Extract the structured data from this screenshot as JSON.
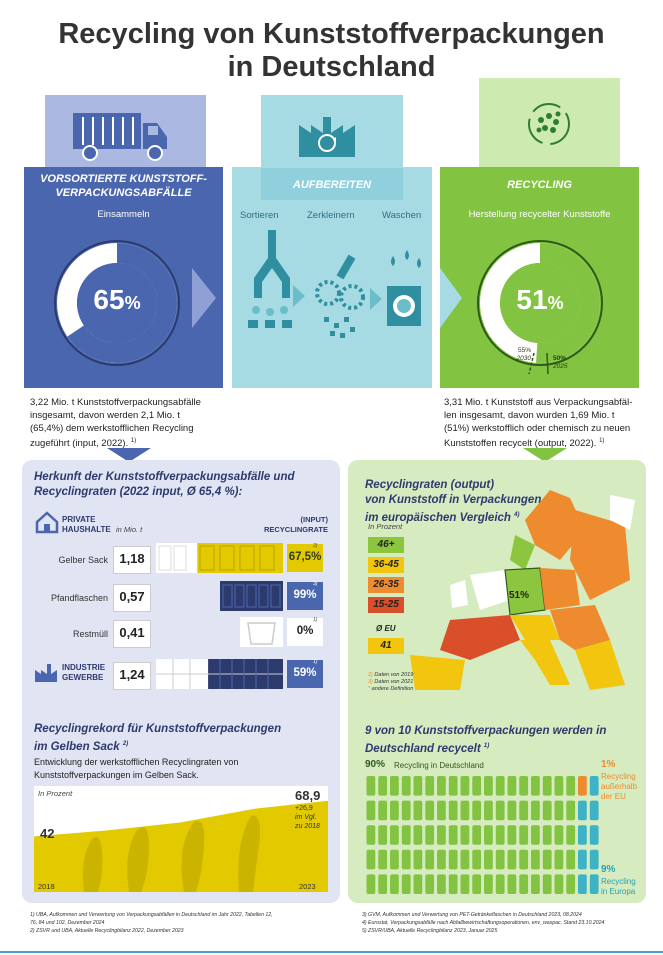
{
  "title_line1": "Recycling von Kunststoffverpackungen",
  "title_line2": "in Deutschland",
  "col1": {
    "title_line1": "VORSORTIERTE KUNSTSTOFF-",
    "title_line2": "VERPACKUNGSABFÄLLE",
    "sub": "Einsammeln",
    "pct_value": "65",
    "pct_sign": "%",
    "fill_fraction": 0.654,
    "desc_line1": "3,22 Mio. t Kunststoffverpackungsabfälle",
    "desc_line2": "insgesamt, davon werden 2,1 Mio. t",
    "desc_line3": "(65,4%) dem werkstofflichen Recycling",
    "desc_line4": "zugeführt (input, 2022).",
    "desc_fn": "1)"
  },
  "col2": {
    "title": "AUFBEREITEN",
    "step1": "Sortieren",
    "step2": "Zerkleinern",
    "step3": "Waschen"
  },
  "col3": {
    "title": "RECYCLING",
    "sub": "Herstellung recycelter Kunststoffe",
    "pct_value": "51",
    "pct_sign": "%",
    "fill_fraction": 0.51,
    "target_pct": "55%",
    "target_year": "2030",
    "target2_pct": "50%",
    "target2_year": "2025",
    "desc_line1": "3,31 Mio. t Kunststoff aus Verpackungsabfäl-",
    "desc_line2": "len insgesamt, davon wurden 1,69 Mio. t",
    "desc_line3": "(51%) werkstofflich oder chemisch zu neuen",
    "desc_line4": "Kunststoffen recycelt (output, 2022).",
    "desc_fn": "1)"
  },
  "herkunft": {
    "title_line1": "Herkunft der Kunststoffverpackungsabfälle und",
    "title_line2": "Recyclingraten (2022 input, Ø 65,4 %):",
    "private_line1": "PRIVATE",
    "private_line2": "HAUSHALTE",
    "unit": "in Mio. t",
    "rate_head1": "(INPUT)",
    "rate_head2": "RECYCLINGRATE",
    "industry_line1": "INDUSTRIE",
    "industry_line2": "GEWERBE"
  },
  "chart_data": [
    {
      "type": "bar",
      "title": "Herkunft der Kunststoffverpackungsabfälle und Recyclingraten (2022 input, Ø 65,4 %):",
      "categories": [
        "Gelber Sack",
        "Pfandflaschen",
        "Restmüll",
        "INDUSTRIE GEWERBE"
      ],
      "amounts": [
        "1,18",
        "0,57",
        "0,41",
        "1,24"
      ],
      "rates": [
        "67,5%",
        "99%",
        "0%",
        "59%"
      ],
      "rate_values": [
        67.5,
        99,
        0,
        59
      ],
      "footnotes": [
        "2)",
        "3)",
        "1)",
        "1)"
      ]
    },
    {
      "type": "area",
      "title": "Recyclingrekord für Kunststoffverpackungen im Gelben Sack",
      "title_fn": "2)",
      "subtitle_line1": "Entwicklung der werkstofflichen Recyclingraten von",
      "subtitle_line2": "Kunststoffverpackungen im Gelben Sack.",
      "ylabel": "In Prozent",
      "x": [
        2018,
        2023
      ],
      "x_labels": [
        "2018",
        "2023"
      ],
      "values": [
        42,
        68.9
      ],
      "value_labels": [
        "42",
        "68,9"
      ],
      "ylim": [
        0,
        80
      ],
      "delta_line1": "+26,9",
      "delta_line2": "im Vgl.",
      "delta_line3": "zu 2018"
    },
    {
      "type": "table",
      "title": "Recyclingraten (output) von Kunststoff in Verpackungen im europäischen Vergleich",
      "title_fn": "4)",
      "ylabel": "In Prozent",
      "legend": [
        "46+",
        "36-45",
        "26-35",
        "15-25"
      ],
      "legend_colors": [
        "#8cc63f",
        "#f2c50f",
        "#ed8b2e",
        "#d94f2a"
      ],
      "eu_label": "Ø EU",
      "eu_value": "41",
      "germany_value": "51%",
      "notes": [
        "Daten von 2019",
        "Daten von 2021",
        "andere Definition"
      ]
    },
    {
      "type": "bar",
      "title": "9 von 10 Kunststoffverpackungen werden in Deutschland recycelt",
      "title_fn": "1)",
      "categories": [
        "Recycling in Deutschland",
        "Recycling außerhalb der EU",
        "Recycling in Europa"
      ],
      "values": [
        90,
        1,
        9
      ],
      "value_labels": [
        "90%",
        "1%",
        "9%"
      ]
    }
  ],
  "europe": {
    "title_line1": "Recyclingraten (output)",
    "title_line2": "von Kunststoff in Verpackungen",
    "title_line3": "im europäischen Vergleich",
    "note_marks": [
      "2)",
      "3)",
      "*"
    ]
  },
  "record": {
    "title_line1": "Recyclingrekord für Kunststoffverpackungen",
    "title_line2": "im Gelben Sack"
  },
  "nine": {
    "title_line1": "9 von 10 Kunststoffverpackungen werden in",
    "title_line2": "Deutschland recycelt",
    "de_label": "Recycling in Deutschland",
    "outside_line1": "Recycling",
    "outside_line2": "außerhalb",
    "outside_line3": "der EU",
    "europe_line1": "Recycling",
    "europe_line2": "in Europa"
  },
  "footnotes_left": [
    "1) UBA, Aufkommen und Verwertung von Verpackungsabfällen in Deutschland im Jahr 2022, Tabellen 12,",
    "76, 84 und 102, Dezember 2024",
    "2) ZSVR und UBA, Aktuelle Recyclingbilanz 2022, Dezember 2023"
  ],
  "footnotes_right": [
    "3) GVM, Aufkommen und Verwertung von PET-Getränkeflaschen in Deutschland 2023, 08.2024",
    "4) Eurostat, Verpackungsabfälle nach Abfallbewirtschaftungsoperationen, env_waspac, Stand 23.10.2024",
    "5) ZSVR/UBA, Aktuelle Recyclingbilanz 2023, Januar 2025"
  ],
  "colors": {
    "blue": "#4a66ae",
    "teal": "#a6dbe4",
    "green": "#82c341",
    "yellow": "#e2c900",
    "navy": "#2d3a6e"
  }
}
